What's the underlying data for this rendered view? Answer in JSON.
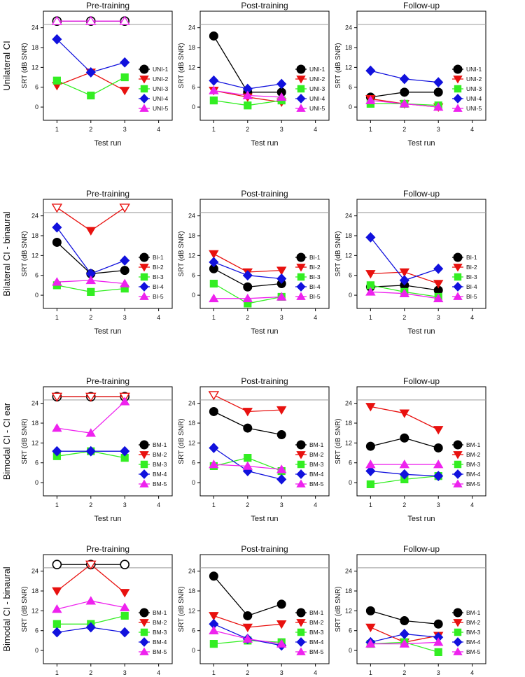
{
  "chart_data": {
    "type": "line",
    "xlabel": "Test run",
    "ylabel": "SRT (dB SNR)",
    "x_ticks": [
      1,
      2,
      3,
      4
    ],
    "y_ticks": [
      0,
      6,
      12,
      18,
      24
    ],
    "xlim": [
      0.6,
      4.4
    ],
    "ylim": [
      -4,
      29
    ],
    "ceiling": 25,
    "panel_titles": [
      "Pre-training",
      "Post-training",
      "Follow-up"
    ],
    "series_colors": [
      "#000000",
      "#e8110f",
      "#33ee22",
      "#1111dd",
      "#ee22ee"
    ],
    "markers": [
      "circle",
      "triangle-down",
      "square",
      "diamond",
      "triangle-up"
    ],
    "rows": [
      {
        "label": "Unilateral CI",
        "legend": [
          "UNI-1",
          "UNI-2",
          "UNI-3",
          "UNI-4",
          "UNI-5"
        ],
        "panels": [
          {
            "series": [
              {
                "values": [
                  26,
                  26,
                  26
                ],
                "open": [
                  true,
                  true,
                  true
                ]
              },
              {
                "values": [
                  6.5,
                  10.5,
                  5
                ]
              },
              {
                "values": [
                  8,
                  3.5,
                  9
                ]
              },
              {
                "values": [
                  20.5,
                  10.5,
                  13.5
                ]
              },
              {
                "values": [
                  26,
                  26,
                  26
                ],
                "open": [
                  true,
                  true,
                  true
                ]
              }
            ]
          },
          {
            "series": [
              {
                "values": [
                  21.5,
                  4.5,
                  4.5
                ]
              },
              {
                "values": [
                  5,
                  3,
                  1.5
                ]
              },
              {
                "values": [
                  2,
                  0.5,
                  2
                ]
              },
              {
                "values": [
                  8,
                  5.5,
                  7
                ]
              },
              {
                "values": [
                  5,
                  3.5,
                  3
                ]
              }
            ]
          },
          {
            "series": [
              {
                "values": [
                  3,
                  4.5,
                  4.5
                ]
              },
              {
                "values": [
                  2.5,
                  1,
                  0
                ]
              },
              {
                "values": [
                  1,
                  1,
                  0.5
                ]
              },
              {
                "values": [
                  11,
                  8.5,
                  7.5
                ]
              },
              {
                "values": [
                  2,
                  1,
                  0
                ]
              }
            ]
          }
        ]
      },
      {
        "label": "Bilateral CI - binaural",
        "legend": [
          "BI-1",
          "BI-2",
          "BI-3",
          "BI-4",
          "BI-5"
        ],
        "panels": [
          {
            "series": [
              {
                "values": [
                  16,
                  6.5,
                  7.5
                ]
              },
              {
                "values": [
                  26.5,
                  19.5,
                  26.5
                ],
                "open": [
                  true,
                  false,
                  true
                ]
              },
              {
                "values": [
                  3,
                  1,
                  2
                ]
              },
              {
                "values": [
                  20.5,
                  6.5,
                  10.5
                ]
              },
              {
                "values": [
                  4,
                  4.5,
                  3.5
                ]
              }
            ]
          },
          {
            "series": [
              {
                "values": [
                  8,
                  2.5,
                  3.5
                ]
              },
              {
                "values": [
                  12.5,
                  7,
                  7.5
                ]
              },
              {
                "values": [
                  3.5,
                  -2.5,
                  -0.5
                ]
              },
              {
                "values": [
                  10,
                  6,
                  5
                ]
              },
              {
                "values": [
                  -1,
                  -1,
                  -0.5
                ]
              }
            ]
          },
          {
            "series": [
              {
                "values": [
                  2.5,
                  3,
                  1.5
                ]
              },
              {
                "values": [
                  6.5,
                  7,
                  3.5
                ]
              },
              {
                "values": [
                  3,
                  1,
                  -0.5
                ]
              },
              {
                "values": [
                  17.5,
                  4.5,
                  8
                ]
              },
              {
                "values": [
                  1,
                  0.5,
                  -1
                ]
              }
            ]
          }
        ]
      },
      {
        "label": "Bimodal CI - CI ear",
        "legend": [
          "BM-1",
          "BM-2",
          "BM-3",
          "BM-4",
          "BM-5"
        ],
        "panels": [
          {
            "series": [
              {
                "values": [
                  26,
                  26,
                  26
                ],
                "open": [
                  true,
                  true,
                  true
                ]
              },
              {
                "values": [
                  26,
                  26,
                  26
                ],
                "open": [
                  true,
                  true,
                  true
                ]
              },
              {
                "values": [
                  8,
                  9.5,
                  7.5
                ]
              },
              {
                "values": [
                  9.5,
                  9.5,
                  9.5
                ]
              },
              {
                "values": [
                  16.5,
                  15,
                  24.5
                ]
              }
            ]
          },
          {
            "series": [
              {
                "values": [
                  21.5,
                  16.5,
                  14.5
                ]
              },
              {
                "values": [
                  26.5,
                  21.5,
                  22
                ],
                "open": [
                  true,
                  false,
                  false
                ]
              },
              {
                "values": [
                  5,
                  7.5,
                  3.5
                ]
              },
              {
                "values": [
                  10.5,
                  3.5,
                  1
                ]
              },
              {
                "values": [
                  5.5,
                  5,
                  4
                ]
              }
            ]
          },
          {
            "series": [
              {
                "values": [
                  11,
                  13.5,
                  10.5
                ]
              },
              {
                "values": [
                  23,
                  21,
                  16
                ]
              },
              {
                "values": [
                  -0.5,
                  1,
                  2
                ]
              },
              {
                "values": [
                  3.5,
                  2.5,
                  2
                ]
              },
              {
                "values": [
                  5.5,
                  5.5,
                  5.5
                ]
              }
            ]
          }
        ]
      },
      {
        "label": "Bimodal CI - binaural",
        "legend": [
          "BM-1",
          "BM-2",
          "BM-3",
          "BM-4",
          "BM-5"
        ],
        "panels": [
          {
            "series": [
              {
                "values": [
                  26,
                  26,
                  26
                ],
                "open": [
                  true,
                  true,
                  true
                ]
              },
              {
                "values": [
                  18,
                  26,
                  17.5
                ],
                "open": [
                  false,
                  true,
                  false
                ]
              },
              {
                "values": [
                  8,
                  8,
                  10.5
                ]
              },
              {
                "values": [
                  5.5,
                  7,
                  5.5
                ]
              },
              {
                "values": [
                  12.5,
                  15,
                  13
                ]
              }
            ]
          },
          {
            "series": [
              {
                "values": [
                  22.5,
                  10.5,
                  14
                ]
              },
              {
                "values": [
                  10.5,
                  7,
                  8
                ]
              },
              {
                "values": [
                  2,
                  3,
                  2.5
                ]
              },
              {
                "values": [
                  8,
                  3.5,
                  1.5
                ]
              },
              {
                "values": [
                  6,
                  3.5,
                  2
                ]
              }
            ]
          },
          {
            "series": [
              {
                "values": [
                  12,
                  9,
                  8
                ]
              },
              {
                "values": [
                  7,
                  2.5,
                  4.5
                ]
              },
              {
                "values": [
                  2,
                  2.5,
                  -0.5
                ]
              },
              {
                "values": [
                  2.5,
                  5,
                  4
                ]
              },
              {
                "values": [
                  2,
                  2,
                  2.5
                ]
              }
            ]
          }
        ]
      }
    ]
  }
}
